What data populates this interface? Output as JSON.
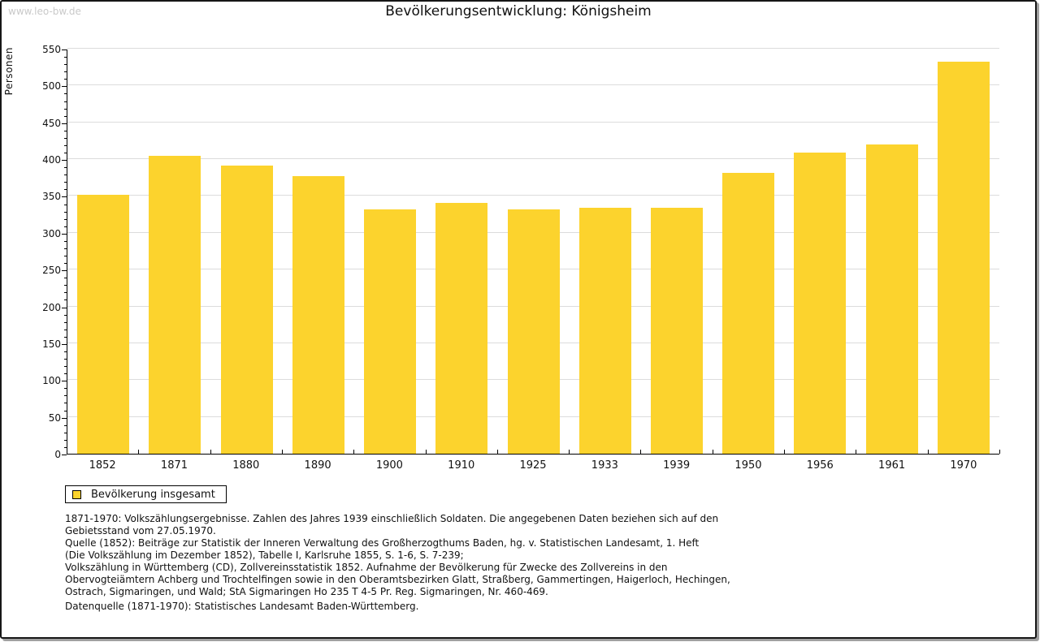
{
  "page": {
    "watermark": "www.leo-bw.de"
  },
  "chart_data": {
    "type": "bar",
    "title": "Bevölkerungsentwicklung: Königsheim",
    "ylabel": "Personen",
    "categories": [
      "1852",
      "1871",
      "1880",
      "1890",
      "1900",
      "1910",
      "1925",
      "1933",
      "1939",
      "1950",
      "1956",
      "1961",
      "1970"
    ],
    "values": [
      352,
      405,
      391,
      377,
      332,
      341,
      332,
      334,
      334,
      381,
      409,
      420,
      532
    ],
    "ylim": [
      0,
      550
    ],
    "ytick_major": 50,
    "ytick_minor": 10,
    "grid": true,
    "legend_position": "bottom-left",
    "bar_color": "#FCD32D",
    "grid_color": "#DCDCDC",
    "axis_color": "#000000"
  },
  "legend": {
    "items": [
      {
        "label": "Bevölkerung insgesamt",
        "color": "#FCD32D"
      }
    ]
  },
  "footer": {
    "notes": [
      "1871-1970: Volkszählungsergebnisse. Zahlen des Jahres 1939 einschließlich Soldaten. Die angegebenen Daten beziehen sich auf den",
      "Gebietsstand vom 27.05.1970.",
      "Quelle (1852): Beiträge zur Statistik der Inneren Verwaltung des Großherzogthums Baden, hg. v. Statistischen Landesamt, 1. Heft",
      "(Die Volkszählung im Dezember 1852), Tabelle I, Karlsruhe 1855, S. 1-6, S. 7-239;",
      "Volkszählung in Württemberg (CD), Zollvereinsstatistik 1852. Aufnahme der Bevölkerung für Zwecke des Zollvereins in den",
      "Obervogteiämtern Achberg und Trochtelfingen sowie in den Oberamtsbezirken Glatt, Straßberg, Gammertingen, Haigerloch, Hechingen,",
      "Ostrach, Sigmaringen, und Wald; StA Sigmaringen Ho 235 T 4-5 Pr. Reg. Sigmaringen, Nr. 460-469."
    ],
    "datasource": "Datenquelle (1871-1970): Statistisches Landesamt Baden-Württemberg."
  }
}
